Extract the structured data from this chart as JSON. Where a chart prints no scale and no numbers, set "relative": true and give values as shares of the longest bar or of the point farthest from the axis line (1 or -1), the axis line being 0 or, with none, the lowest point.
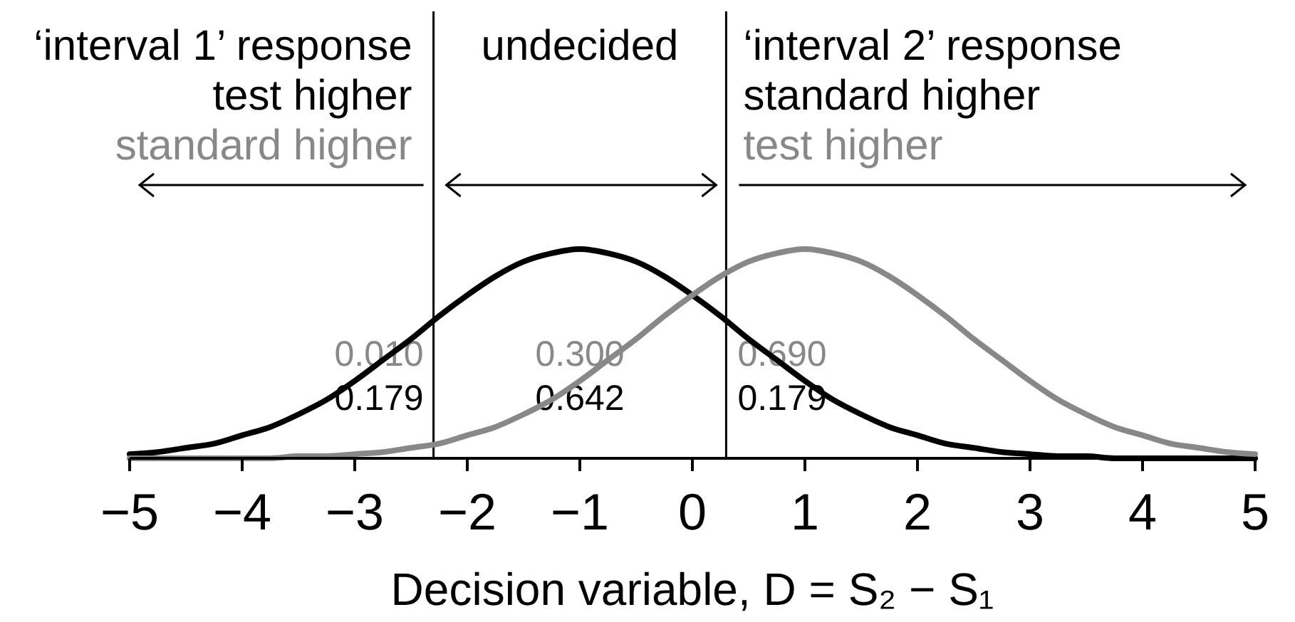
{
  "chart_data": {
    "type": "line",
    "relative": true,
    "xlabel": "Decision variable, D = S₂ − S₁",
    "x": [
      -5,
      -4.75,
      -4.5,
      -4.25,
      -4,
      -3.75,
      -3.5,
      -3.25,
      -3,
      -2.75,
      -2.5,
      -2.25,
      -2,
      -1.75,
      -1.5,
      -1.25,
      -1,
      -0.75,
      -0.5,
      -0.25,
      0,
      0.25,
      0.5,
      0.75,
      1,
      1.25,
      1.5,
      1.75,
      2,
      2.25,
      2.5,
      2.75,
      3,
      3.25,
      3.5,
      3.75,
      4,
      4.25,
      4.5,
      4.75,
      5
    ],
    "series": [
      {
        "color": "#000000",
        "values": [
          0.02,
          0.03,
          0.05,
          0.07,
          0.11,
          0.15,
          0.21,
          0.28,
          0.37,
          0.47,
          0.57,
          0.68,
          0.78,
          0.87,
          0.94,
          0.98,
          1,
          0.98,
          0.94,
          0.87,
          0.78,
          0.68,
          0.57,
          0.47,
          0.37,
          0.28,
          0.21,
          0.15,
          0.11,
          0.07,
          0.05,
          0.03,
          0.02,
          0.01,
          0.01,
          0,
          0,
          0,
          0,
          0,
          0
        ]
      },
      {
        "color": "#888888",
        "values": [
          0,
          0,
          0,
          0,
          0,
          0,
          0.01,
          0.01,
          0.02,
          0.03,
          0.05,
          0.07,
          0.11,
          0.15,
          0.21,
          0.28,
          0.37,
          0.47,
          0.57,
          0.68,
          0.78,
          0.87,
          0.94,
          0.98,
          1,
          0.98,
          0.94,
          0.87,
          0.78,
          0.68,
          0.57,
          0.47,
          0.37,
          0.28,
          0.21,
          0.15,
          0.11,
          0.07,
          0.05,
          0.03,
          0.02
        ]
      }
    ],
    "xlim": [
      -5,
      5
    ],
    "xticks": [
      {
        "value": -5,
        "label": "−5"
      },
      {
        "value": -4,
        "label": "−4"
      },
      {
        "value": -3,
        "label": "−3"
      },
      {
        "value": -2,
        "label": "−2"
      },
      {
        "value": -1,
        "label": "−1"
      },
      0,
      1,
      2,
      3,
      4,
      5
    ],
    "ref_lines": [
      {
        "axis": "x",
        "value": -2.3,
        "color": "#000000"
      },
      {
        "axis": "x",
        "value": 0.3,
        "color": "#000000"
      }
    ],
    "annotations": [
      "‘interval 1’ response",
      "test higher",
      "standard higher",
      "undecided",
      "‘interval 2’ response",
      "standard higher",
      "test higher",
      "0.010",
      "0.179",
      "0.300",
      "0.642",
      "0.690",
      "0.179"
    ]
  }
}
